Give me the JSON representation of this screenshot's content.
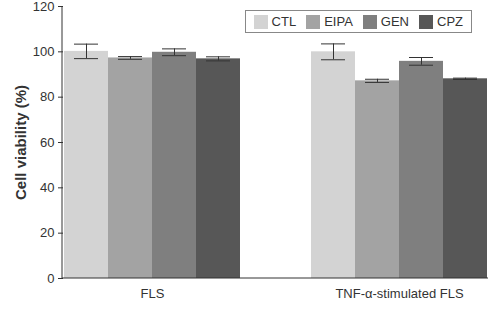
{
  "chart_data": {
    "type": "bar",
    "categories": [
      "FLS",
      "TNF-α-stimulated FLS"
    ],
    "series": [
      {
        "name": "CTL",
        "color": "#d3d3d3",
        "values": [
          100.2,
          100.0
        ],
        "errors": [
          3.2,
          3.5
        ]
      },
      {
        "name": "EIPA",
        "color": "#a3a3a3",
        "values": [
          97.3,
          87.2
        ],
        "errors": [
          0.6,
          0.7
        ]
      },
      {
        "name": "GEN",
        "color": "#7f7f7f",
        "values": [
          99.8,
          95.8
        ],
        "errors": [
          1.5,
          1.7
        ]
      },
      {
        "name": "CPZ",
        "color": "#575757",
        "values": [
          96.9,
          88.1
        ],
        "errors": [
          0.9,
          0.3
        ]
      }
    ],
    "ylabel": "Cell viability (%)",
    "ylim": [
      0,
      120
    ],
    "yticks": [
      0,
      20,
      40,
      60,
      80,
      100,
      120
    ],
    "legend": "top-right",
    "grid": false
  }
}
